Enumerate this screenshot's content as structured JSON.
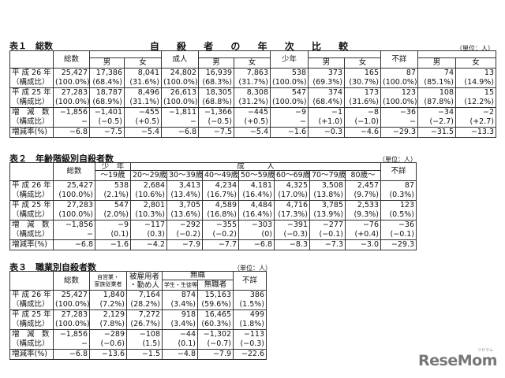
{
  "title": "自 殺 者 の 年 次 比 較",
  "unit": "（単位：人）",
  "table1": {
    "caption": "表１　総数",
    "headers": {
      "total": "総数",
      "male": "男",
      "female": "女",
      "adult": "成人",
      "youth": "少年",
      "unknown": "不詳"
    },
    "rows": [
      {
        "label": "平 成 26 年",
        "values": [
          "25,427",
          "17,386",
          "8,041",
          "24,802",
          "16,939",
          "7,863",
          "538",
          "373",
          "165",
          "87",
          "74",
          "13"
        ]
      },
      {
        "label": "（構成比）",
        "values": [
          "(100.0%)",
          "(68.4%)",
          "(31.6%)",
          "(100.0%)",
          "(68.3%)",
          "(31.7%)",
          "(100.0%)",
          "(69.3%)",
          "(30.7%)",
          "(100.0%)",
          "(85.1%)",
          "(14.9%)"
        ]
      },
      {
        "label": "平 成 25 年",
        "values": [
          "27,283",
          "18,787",
          "8,496",
          "26,613",
          "18,305",
          "8,308",
          "547",
          "374",
          "173",
          "123",
          "108",
          "15"
        ]
      },
      {
        "label": "（構成比）",
        "values": [
          "(100.0%)",
          "(68.9%)",
          "(31.1%)",
          "(100.0%)",
          "(68.8%)",
          "(31.2%)",
          "(100.0%)",
          "(68.4%)",
          "(31.6%)",
          "(100.0%)",
          "(87.8%)",
          "(12.2%)"
        ]
      },
      {
        "label": "増　減　数",
        "values": [
          "−1,856",
          "−1,401",
          "−455",
          "−1,811",
          "−1,366",
          "−445",
          "−9",
          "−1",
          "−8",
          "−36",
          "−34",
          "−2"
        ]
      },
      {
        "label": "（構成比）",
        "values": [
          "−",
          "(−0.5)",
          "(+0.5)",
          "−",
          "(−0.5)",
          "(+0.5)",
          "−",
          "(+1.0)",
          "(−1.0)",
          "−",
          "(−2.7)",
          "(+2.7)"
        ]
      },
      {
        "label": "増減率(%)",
        "values": [
          "−6.8",
          "−7.5",
          "−5.4",
          "−6.8",
          "−7.5",
          "−5.4",
          "−1.6",
          "−0.3",
          "−4.6",
          "−29.3",
          "−31.5",
          "−13.3"
        ]
      }
    ]
  },
  "table2": {
    "caption": "表２　年齢階級別自殺者数",
    "headers": {
      "total": "総数",
      "youth": "少　年",
      "adult": "成　　　人",
      "unknown": "不詳",
      "ages": [
        "～19歳",
        "20～29歳",
        "30～39歳",
        "40～49歳",
        "50～59歳",
        "60～69歳",
        "70～79歳",
        "80歳～"
      ]
    },
    "rows": [
      {
        "label": "平 成 26 年",
        "values": [
          "25,427",
          "538",
          "2,684",
          "3,413",
          "4,234",
          "4,181",
          "4,325",
          "3,508",
          "2,457",
          "87"
        ]
      },
      {
        "label": "（構成比）",
        "values": [
          "(100.0%)",
          "(2.1%)",
          "(10.6%)",
          "(13.4%)",
          "(16.7%)",
          "(16.4%)",
          "(17.0%)",
          "(13.8%)",
          "(9.7%)",
          "(0.3%)"
        ]
      },
      {
        "label": "平 成 25 年",
        "values": [
          "27,283",
          "547",
          "2,801",
          "3,705",
          "4,589",
          "4,484",
          "4,716",
          "3,785",
          "2,533",
          "123"
        ]
      },
      {
        "label": "（構成比）",
        "values": [
          "(100.0%)",
          "(2.0%)",
          "(10.3%)",
          "(13.6%)",
          "(16.8%)",
          "(16.4%)",
          "(17.3%)",
          "(13.9%)",
          "(9.3%)",
          "(0.5%)"
        ]
      },
      {
        "label": "増　減　数",
        "values": [
          "−1,856",
          "−9",
          "−117",
          "−292",
          "−355",
          "−303",
          "−391",
          "−277",
          "−76",
          "−36"
        ]
      },
      {
        "label": "（構成比）",
        "values": [
          "−",
          "(0.1)",
          "(0.3)",
          "(−0.2)",
          "(−0.2)",
          "(0)",
          "(−0.3)",
          "(−0.1)",
          "(+0.4)",
          "(−0.1)"
        ]
      },
      {
        "label": "増減率(%)",
        "values": [
          "−6.8",
          "−1.6",
          "−4.2",
          "−7.9",
          "−7.7",
          "−6.8",
          "−8.3",
          "−7.3",
          "−3.0",
          "−29.3"
        ]
      }
    ]
  },
  "table3": {
    "caption": "表３　職業別自殺者数",
    "headers": {
      "total": "総数",
      "self1": "自営業・",
      "self2": "家族従業者",
      "emp1": "被雇用者",
      "emp2": "・勤め人",
      "unemployed": "無職",
      "student": "学生・生徒等",
      "jobless": "無職者",
      "unknown": "不詳"
    },
    "rows": [
      {
        "label": "平 成 26 年",
        "values": [
          "25,427",
          "1,840",
          "7,164",
          "874",
          "15,163",
          "386"
        ]
      },
      {
        "label": "（構成比）",
        "values": [
          "(100.0%)",
          "(7.2%)",
          "(28.2%)",
          "(3.4%)",
          "(59.6%)",
          "(1.5%)"
        ]
      },
      {
        "label": "平 成 25 年",
        "values": [
          "27,283",
          "2,129",
          "7,272",
          "918",
          "16,465",
          "499"
        ]
      },
      {
        "label": "（構成比）",
        "values": [
          "(100.0%)",
          "(7.8%)",
          "(26.7%)",
          "(3.4%)",
          "(60.3%)",
          "(1.8%)"
        ]
      },
      {
        "label": "増　減　数",
        "values": [
          "−1,856",
          "−289",
          "−108",
          "−44",
          "−1,302",
          "−113"
        ]
      },
      {
        "label": "（構成比）",
        "values": [
          "−",
          "(−0.6)",
          "(1.5)",
          "(0.1)",
          "(−0.7)",
          "(−0.3)"
        ]
      },
      {
        "label": "増減率(%)",
        "values": [
          "−6.8",
          "−13.6",
          "−1.5",
          "−4.8",
          "−7.9",
          "−22.6"
        ]
      }
    ]
  },
  "logo": {
    "text": "ReseMom",
    "sub": "リセマム"
  }
}
